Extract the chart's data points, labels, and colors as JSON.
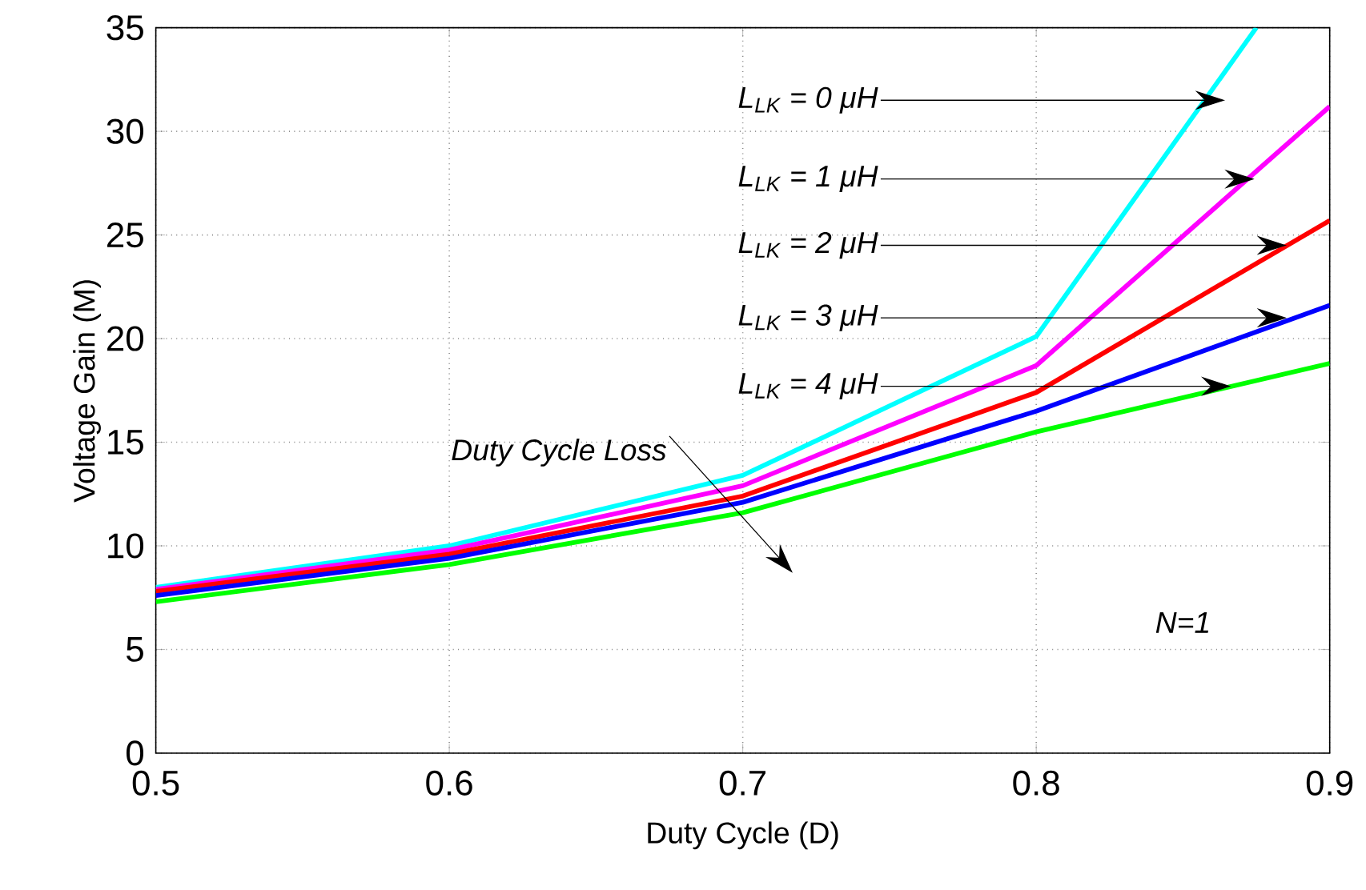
{
  "chart_data": {
    "type": "line",
    "xlabel": "Duty Cycle (D)",
    "ylabel": "Voltage Gain (M)",
    "x": [
      0.5,
      0.6,
      0.7,
      0.8,
      0.9
    ],
    "series": [
      {
        "color": "#00ffff",
        "x": [
          0.5,
          0.6,
          0.7,
          0.8,
          0.875
        ],
        "values": [
          8.0,
          10.0,
          13.4,
          20.1,
          35.0
        ]
      },
      {
        "color": "#ff00ff",
        "values": [
          7.9,
          9.8,
          12.9,
          18.7,
          31.2
        ]
      },
      {
        "color": "#ff0000",
        "values": [
          7.8,
          9.6,
          12.4,
          17.4,
          25.7
        ]
      },
      {
        "color": "#0000ff",
        "values": [
          7.6,
          9.4,
          12.1,
          16.5,
          21.6
        ]
      },
      {
        "color": "#00ff00",
        "values": [
          7.3,
          9.1,
          11.6,
          15.5,
          18.8
        ]
      }
    ],
    "xlim": [
      0.5,
      0.9
    ],
    "ylim": [
      0,
      35
    ],
    "xticks": [
      0.5,
      0.6,
      0.7,
      0.8,
      0.9
    ],
    "yticks": [
      0,
      5,
      10,
      15,
      20,
      25,
      30,
      35
    ],
    "grid": true,
    "marker": "none",
    "line_style": "solid",
    "annotations": [
      {
        "text": "L$_{LK}$ = 0 μH",
        "x": 0.86,
        "y": 31.5
      },
      {
        "text": "L$_{LK}$ = 1 μH",
        "x": 0.87,
        "y": 27.7
      },
      {
        "text": "L$_{LK}$ = 2 μH",
        "x": 0.881,
        "y": 24.5
      },
      {
        "text": "L$_{LK}$ = 3 μH",
        "x": 0.881,
        "y": 21.0
      },
      {
        "text": "L$_{LK}$ = 4 μH",
        "x": 0.862,
        "y": 17.7
      },
      "Duty Cycle Loss",
      "N=1"
    ]
  }
}
